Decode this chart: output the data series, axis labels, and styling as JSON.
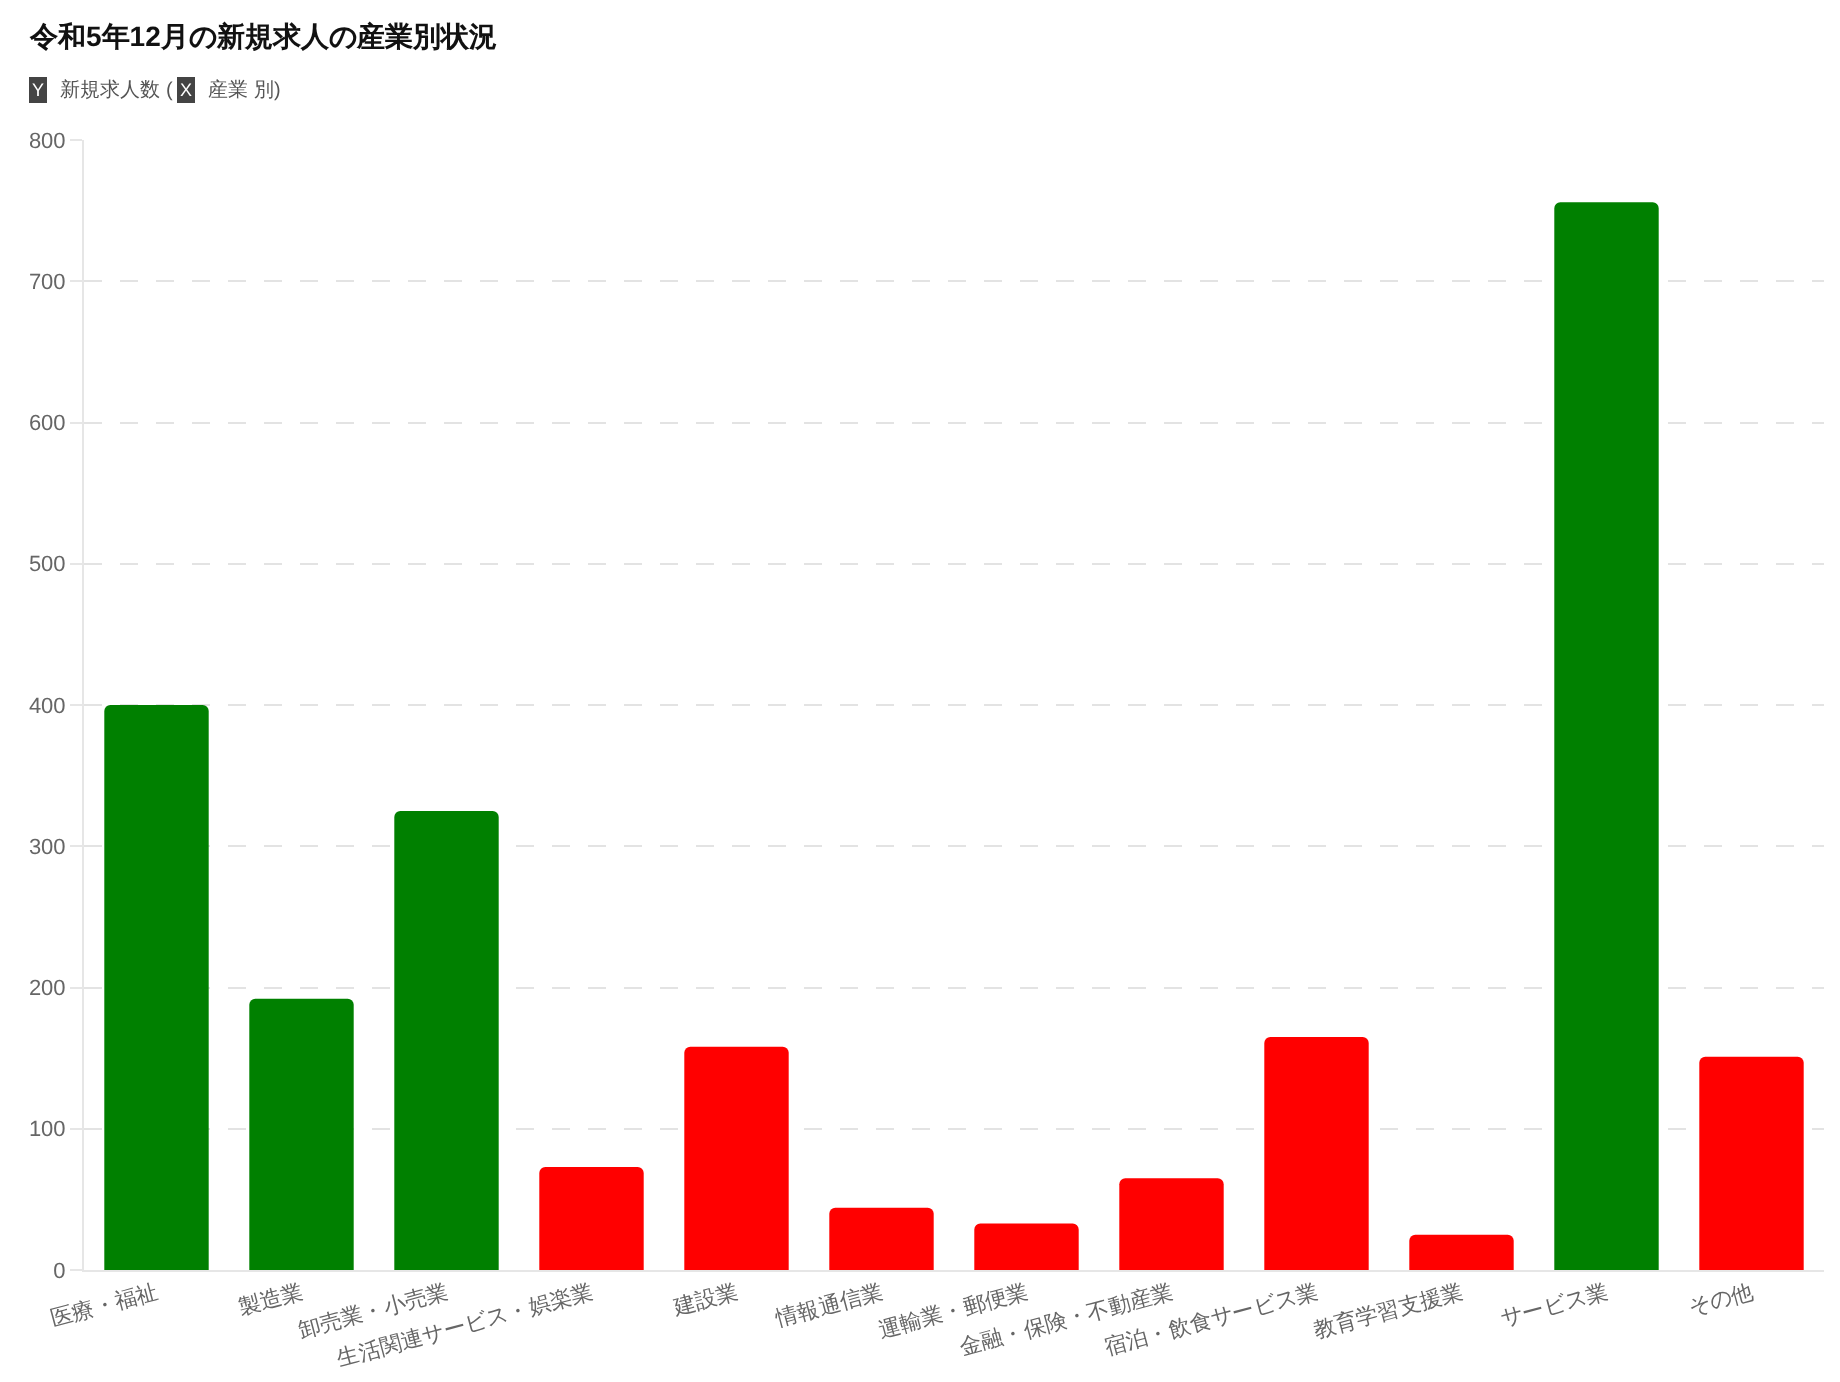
{
  "chart_data": {
    "type": "bar",
    "title": "令和5年12月の新規求人の産業別状況",
    "subtitle": "Y 新規求人数 ( X 産業 別)",
    "categories": [
      "医療・福祉",
      "製造業",
      "卸売業・小売業",
      "生活関連サービス・娯楽業",
      "建設業",
      "情報通信業",
      "運輸業・郵便業",
      "金融・保険・不動産業",
      "宿泊・飲食サービス業",
      "教育学習支援業",
      "サービス業",
      "その他"
    ],
    "values": [
      400,
      192,
      325,
      73,
      158,
      44,
      33,
      65,
      165,
      25,
      756,
      151
    ],
    "colors": [
      "#008000",
      "#008000",
      "#008000",
      "#ff0000",
      "#ff0000",
      "#ff0000",
      "#ff0000",
      "#ff0000",
      "#ff0000",
      "#ff0000",
      "#008000",
      "#ff0000"
    ],
    "ylim": [
      0,
      800
    ],
    "yticks": [
      0,
      100,
      200,
      300,
      400,
      500,
      600,
      700,
      800
    ],
    "grid": "y"
  }
}
